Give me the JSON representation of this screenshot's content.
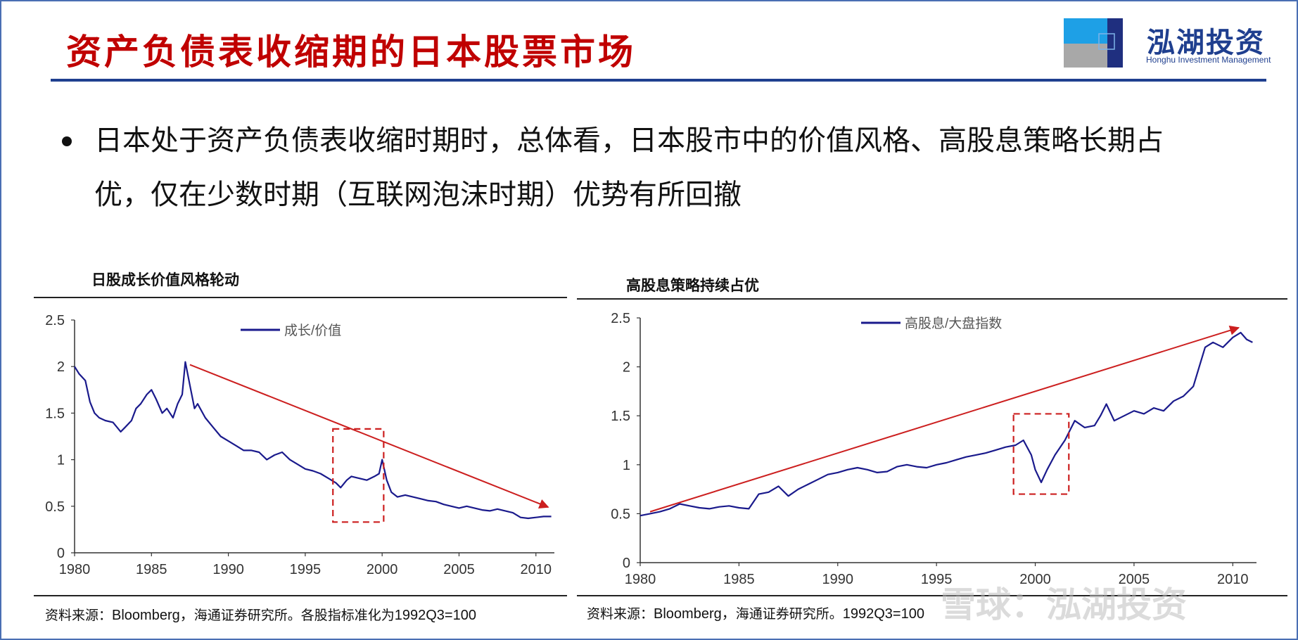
{
  "slide": {
    "title": "资产负债表收缩期的日本股票市场",
    "logo": {
      "name_cn": "泓湖投资",
      "name_en": "Honghu Investment Management"
    },
    "bullet": "日本处于资产负债表收缩时期时，总体看，日本股市中的价值风格、高股息策略长期占优，仅在少数时期（互联网泡沫时期）优势有所回撤",
    "watermark": "雪球：泓湖投资"
  },
  "colors": {
    "title": "#c00000",
    "rule": "#1f3f8f",
    "series": "#1a1a8c",
    "arrow": "#cc1f1f",
    "box": "#cc1f1f"
  },
  "chart_data": [
    {
      "type": "line",
      "title": "日股成长价值风格轮动",
      "xlim": [
        1980,
        2011.2
      ],
      "ylim": [
        0,
        2.5
      ],
      "xticks": [
        1980,
        1985,
        1990,
        1995,
        2000,
        2005,
        2010
      ],
      "yticks": [
        0,
        0.5,
        1,
        1.5,
        2,
        2.5
      ],
      "ytick_labels": [
        "0",
        "0.5",
        "1",
        "1.5",
        "2",
        "2.5"
      ],
      "legend": "top-center",
      "series": [
        {
          "name": "成长/价值",
          "x": [
            1980.0,
            1980.3,
            1980.7,
            1981.0,
            1981.3,
            1981.6,
            1982.0,
            1982.5,
            1983.0,
            1983.3,
            1983.7,
            1984.0,
            1984.3,
            1984.7,
            1985.0,
            1985.3,
            1985.7,
            1986.0,
            1986.4,
            1986.7,
            1987.0,
            1987.2,
            1987.5,
            1987.8,
            1988.0,
            1988.5,
            1989.0,
            1989.5,
            1990.0,
            1990.5,
            1991.0,
            1991.5,
            1992.0,
            1992.5,
            1993.0,
            1993.5,
            1994.0,
            1994.5,
            1995.0,
            1995.5,
            1996.0,
            1996.5,
            1997.0,
            1997.3,
            1997.7,
            1998.0,
            1998.5,
            1999.0,
            1999.5,
            1999.8,
            2000.0,
            2000.3,
            2000.6,
            2001.0,
            2001.5,
            2002.0,
            2002.5,
            2003.0,
            2003.5,
            2004.0,
            2004.5,
            2005.0,
            2005.5,
            2006.0,
            2006.5,
            2007.0,
            2007.5,
            2008.0,
            2008.5,
            2009.0,
            2009.5,
            2010.0,
            2010.5,
            2011.0
          ],
          "y": [
            2.0,
            1.92,
            1.85,
            1.62,
            1.5,
            1.45,
            1.42,
            1.4,
            1.3,
            1.35,
            1.42,
            1.55,
            1.6,
            1.7,
            1.75,
            1.65,
            1.5,
            1.55,
            1.45,
            1.6,
            1.7,
            2.05,
            1.8,
            1.55,
            1.6,
            1.45,
            1.35,
            1.25,
            1.2,
            1.15,
            1.1,
            1.1,
            1.08,
            1.0,
            1.05,
            1.08,
            1.0,
            0.95,
            0.9,
            0.88,
            0.85,
            0.8,
            0.75,
            0.7,
            0.78,
            0.82,
            0.8,
            0.78,
            0.82,
            0.85,
            1.0,
            0.78,
            0.65,
            0.6,
            0.62,
            0.6,
            0.58,
            0.56,
            0.55,
            0.52,
            0.5,
            0.48,
            0.5,
            0.48,
            0.46,
            0.45,
            0.47,
            0.45,
            0.43,
            0.38,
            0.37,
            0.38,
            0.39,
            0.39
          ]
        }
      ],
      "annotations": {
        "trend_arrow": {
          "from": [
            1987.5,
            2.02
          ],
          "to": [
            2010.8,
            0.49
          ]
        },
        "box": {
          "x": [
            1996.8,
            2000.1
          ],
          "y": [
            0.33,
            1.33
          ]
        }
      },
      "source": {
        "prefix": "资料来源：",
        "latin1": "Bloomberg，",
        "middle": "海通证券研究所。各股指标准化为",
        "latin2": "1992Q3=100"
      }
    },
    {
      "type": "line",
      "title": "高股息策略持续占优",
      "xlim": [
        1980,
        2011.2
      ],
      "ylim": [
        0,
        2.5
      ],
      "xticks": [
        1980,
        1985,
        1990,
        1995,
        2000,
        2005,
        2010
      ],
      "yticks": [
        0,
        0.5,
        1,
        1.5,
        2,
        2.5
      ],
      "ytick_labels": [
        "0",
        "0.5",
        "1",
        "1.5",
        "2",
        "2.5"
      ],
      "legend": "top-center",
      "series": [
        {
          "name": "高股息/大盘指数",
          "x": [
            1980.0,
            1980.5,
            1981.0,
            1981.5,
            1982.0,
            1982.5,
            1983.0,
            1983.5,
            1984.0,
            1984.5,
            1985.0,
            1985.5,
            1986.0,
            1986.5,
            1987.0,
            1987.5,
            1988.0,
            1988.5,
            1989.0,
            1989.5,
            1990.0,
            1990.5,
            1991.0,
            1991.5,
            1992.0,
            1992.5,
            1993.0,
            1993.5,
            1994.0,
            1994.5,
            1995.0,
            1995.5,
            1996.0,
            1996.5,
            1997.0,
            1997.5,
            1998.0,
            1998.5,
            1999.0,
            1999.4,
            1999.8,
            2000.0,
            2000.3,
            2000.6,
            2001.0,
            2001.5,
            2002.0,
            2002.5,
            2003.0,
            2003.3,
            2003.6,
            2004.0,
            2004.5,
            2005.0,
            2005.5,
            2006.0,
            2006.5,
            2007.0,
            2007.5,
            2008.0,
            2008.3,
            2008.6,
            2009.0,
            2009.5,
            2010.0,
            2010.4,
            2010.7,
            2011.0
          ],
          "y": [
            0.48,
            0.5,
            0.52,
            0.55,
            0.6,
            0.58,
            0.56,
            0.55,
            0.57,
            0.58,
            0.56,
            0.55,
            0.7,
            0.72,
            0.78,
            0.68,
            0.75,
            0.8,
            0.85,
            0.9,
            0.92,
            0.95,
            0.97,
            0.95,
            0.92,
            0.93,
            0.98,
            1.0,
            0.98,
            0.97,
            1.0,
            1.02,
            1.05,
            1.08,
            1.1,
            1.12,
            1.15,
            1.18,
            1.2,
            1.25,
            1.1,
            0.95,
            0.82,
            0.95,
            1.1,
            1.25,
            1.45,
            1.38,
            1.4,
            1.5,
            1.62,
            1.45,
            1.5,
            1.55,
            1.52,
            1.58,
            1.55,
            1.65,
            1.7,
            1.8,
            2.0,
            2.2,
            2.25,
            2.2,
            2.3,
            2.35,
            2.28,
            2.25
          ]
        }
      ],
      "annotations": {
        "trend_arrow": {
          "from": [
            1980.5,
            0.52
          ],
          "to": [
            2010.3,
            2.4
          ]
        },
        "box": {
          "x": [
            1998.9,
            2001.7
          ],
          "y": [
            0.7,
            1.52
          ]
        }
      },
      "source": {
        "prefix": "资料来源：",
        "latin1": "Bloomberg，",
        "middle": "海通证券研究所。",
        "latin2": "1992Q3=100"
      }
    }
  ]
}
